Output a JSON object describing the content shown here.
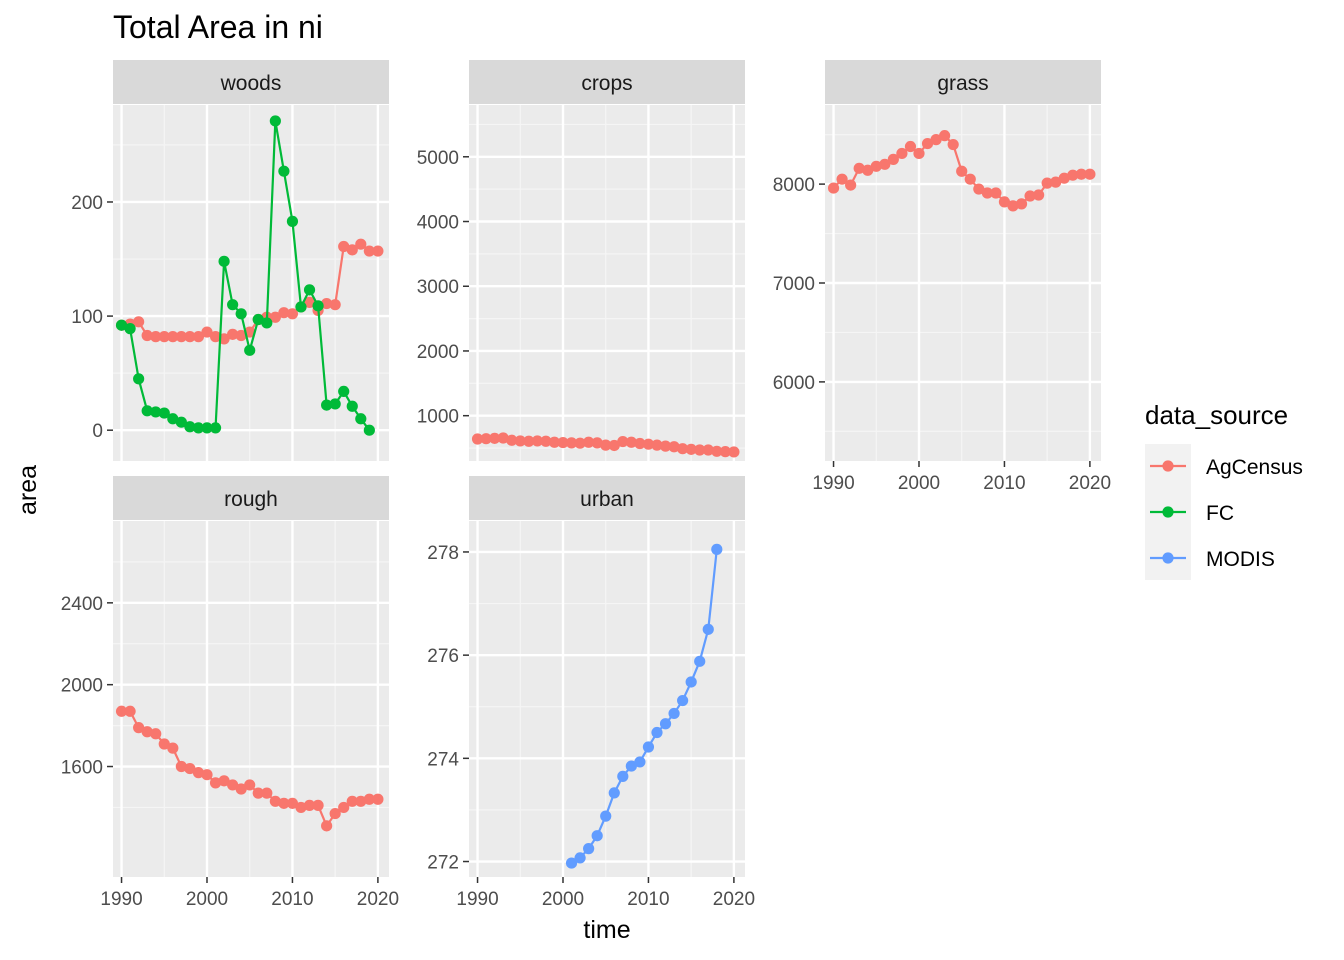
{
  "chart_data": {
    "type": "line",
    "title": "Total Area in ni",
    "xlabel": "time",
    "ylabel": "area",
    "legend": {
      "title": "data_source",
      "position": "right",
      "entries": [
        {
          "name": "AgCensus",
          "color": "#F8766D"
        },
        {
          "name": "FC",
          "color": "#00BA38"
        },
        {
          "name": "MODIS",
          "color": "#619CFF"
        }
      ]
    },
    "grid": true,
    "facets": [
      {
        "name": "woods",
        "xlim": [
          1989,
          2021.3
        ],
        "ylim": [
          -27,
          285
        ],
        "xticks": [
          1990,
          2000,
          2010,
          2020
        ],
        "yticks": [
          0,
          100,
          200
        ],
        "series": [
          {
            "name": "AgCensus",
            "x": [
              1990,
              1991,
              1992,
              1993,
              1994,
              1995,
              1996,
              1997,
              1998,
              1999,
              2000,
              2001,
              2002,
              2003,
              2004,
              2005,
              2006,
              2007,
              2008,
              2009,
              2010,
              2011,
              2012,
              2013,
              2014,
              2015,
              2016,
              2017,
              2018,
              2019,
              2020
            ],
            "y": [
              92,
              93,
              95,
              83,
              82,
              82,
              82,
              82,
              82,
              82,
              86,
              82,
              80,
              84,
              83,
              86,
              97,
              99,
              99,
              103,
              102,
              108,
              112,
              105,
              111,
              110,
              161,
              158,
              163,
              157,
              157
            ]
          },
          {
            "name": "FC",
            "x": [
              1990,
              1991,
              1992,
              1993,
              1994,
              1995,
              1996,
              1997,
              1998,
              1999,
              2000,
              2001,
              2002,
              2003,
              2004,
              2005,
              2006,
              2007,
              2008,
              2009,
              2010,
              2011,
              2012,
              2013,
              2014,
              2015,
              2016,
              2017,
              2018,
              2019
            ],
            "y": [
              92,
              89,
              45,
              17,
              16,
              15,
              10,
              7,
              3,
              2,
              2,
              2,
              148,
              110,
              102,
              70,
              97,
              94,
              271,
              227,
              183,
              108,
              123,
              109,
              22,
              23,
              34,
              21,
              10,
              0
            ]
          }
        ]
      },
      {
        "name": "crops",
        "xlim": [
          1989,
          2021.3
        ],
        "ylim": [
          300,
          5800
        ],
        "xticks": [
          1990,
          2000,
          2010,
          2020
        ],
        "yticks": [
          1000,
          2000,
          3000,
          4000,
          5000
        ],
        "series": [
          {
            "name": "AgCensus",
            "x": [
              1990,
              1991,
              1992,
              1993,
              1994,
              1995,
              1996,
              1997,
              1998,
              1999,
              2000,
              2001,
              2002,
              2003,
              2004,
              2005,
              2006,
              2007,
              2008,
              2009,
              2010,
              2011,
              2012,
              2013,
              2014,
              2015,
              2016,
              2017,
              2018,
              2019,
              2020
            ],
            "y": [
              640,
              645,
              650,
              655,
              620,
              610,
              605,
              610,
              605,
              590,
              585,
              580,
              575,
              590,
              580,
              545,
              540,
              600,
              590,
              570,
              560,
              545,
              530,
              520,
              490,
              480,
              470,
              470,
              450,
              445,
              440
            ]
          }
        ]
      },
      {
        "name": "grass",
        "xlim": [
          1989,
          2021.3
        ],
        "ylim": [
          5200,
          8800
        ],
        "xticks": [
          1990,
          2000,
          2010,
          2020
        ],
        "yticks": [
          6000,
          7000,
          8000
        ],
        "series": [
          {
            "name": "AgCensus",
            "x": [
              1990,
              1991,
              1992,
              1993,
              1994,
              1995,
              1996,
              1997,
              1998,
              1999,
              2000,
              2001,
              2002,
              2003,
              2004,
              2005,
              2006,
              2007,
              2008,
              2009,
              2010,
              2011,
              2012,
              2013,
              2014,
              2015,
              2016,
              2017,
              2018,
              2019,
              2020
            ],
            "y": [
              7960,
              8050,
              7990,
              8160,
              8140,
              8180,
              8200,
              8250,
              8310,
              8380,
              8310,
              8410,
              8450,
              8490,
              8400,
              8130,
              8050,
              7950,
              7910,
              7910,
              7820,
              7780,
              7800,
              7880,
              7890,
              8010,
              8020,
              8060,
              8090,
              8100,
              8100
            ]
          }
        ]
      },
      {
        "name": "rough",
        "xlim": [
          1989,
          2021.3
        ],
        "ylim": [
          1060,
          2800
        ],
        "xticks": [
          1990,
          2000,
          2010,
          2020
        ],
        "yticks": [
          1600,
          2000,
          2400
        ],
        "series": [
          {
            "name": "AgCensus",
            "x": [
              1990,
              1991,
              1992,
              1993,
              1994,
              1995,
              1996,
              1997,
              1998,
              1999,
              2000,
              2001,
              2002,
              2003,
              2004,
              2005,
              2006,
              2007,
              2008,
              2009,
              2010,
              2011,
              2012,
              2013,
              2014,
              2015,
              2016,
              2017,
              2018,
              2019,
              2020
            ],
            "y": [
              1870,
              1870,
              1790,
              1770,
              1760,
              1710,
              1690,
              1600,
              1590,
              1570,
              1560,
              1520,
              1530,
              1510,
              1490,
              1510,
              1470,
              1470,
              1430,
              1420,
              1420,
              1400,
              1410,
              1410,
              1310,
              1370,
              1400,
              1430,
              1430,
              1440,
              1440
            ]
          }
        ]
      },
      {
        "name": "urban",
        "xlim": [
          1989,
          2021.3
        ],
        "ylim": [
          271.7,
          278.6
        ],
        "xticks": [
          1990,
          2000,
          2010,
          2020
        ],
        "yticks": [
          272,
          274,
          276,
          278
        ],
        "series": [
          {
            "name": "MODIS",
            "x": [
              2001,
              2002,
              2003,
              2004,
              2005,
              2006,
              2007,
              2008,
              2009,
              2010,
              2011,
              2012,
              2013,
              2014,
              2015,
              2016,
              2017,
              2018
            ],
            "y": [
              271.97,
              272.07,
              272.25,
              272.5,
              272.88,
              273.33,
              273.65,
              273.85,
              273.93,
              274.22,
              274.5,
              274.67,
              274.87,
              275.12,
              275.48,
              275.88,
              276.5,
              278.05
            ]
          }
        ]
      }
    ]
  }
}
